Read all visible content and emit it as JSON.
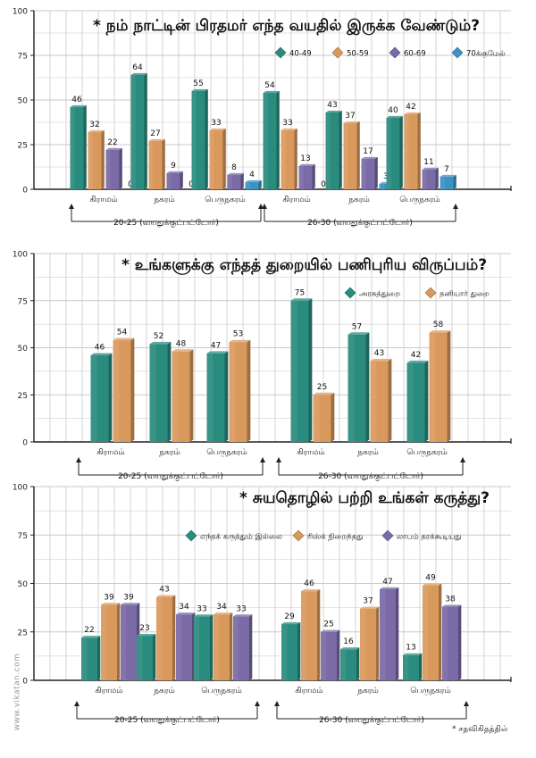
{
  "watermark": "www.vikatan.com",
  "footnote": "* சதவிகிதத்தில்",
  "colors": {
    "teal": "#2a8c7e",
    "orange": "#d9995c",
    "purple": "#7a6aa6",
    "blue": "#3d92c4",
    "grid": "#c9c9c9",
    "axis": "#222222"
  },
  "chart_data": [
    {
      "type": "bar",
      "title": "* நம் நாட்டின் பிரதமர் எந்த வயதில் இருக்க வேண்டும்?",
      "ylim": [
        0,
        100
      ],
      "yticks": [
        "0",
        "25",
        "50",
        "75",
        "100"
      ],
      "categories": [
        "கிராமம்",
        "நகரம்",
        "பெருநகரம்",
        "கிராமம்",
        "நகரம்",
        "பெருநகரம்"
      ],
      "groups": [
        {
          "label": "20-25  (வயதுக்குட்பட்டோர்)",
          "span": [
            0,
            2
          ]
        },
        {
          "label": "26-30  (வயதுக்குட்பட்டோர்)",
          "span": [
            3,
            5
          ]
        }
      ],
      "series": [
        {
          "name": "40-49",
          "color": "#2a8c7e",
          "values": [
            46,
            64,
            55,
            54,
            43,
            40
          ]
        },
        {
          "name": "50-59",
          "color": "#d9995c",
          "values": [
            32,
            27,
            33,
            33,
            37,
            42
          ]
        },
        {
          "name": "60-69",
          "color": "#7a6aa6",
          "values": [
            22,
            9,
            8,
            13,
            17,
            11
          ]
        },
        {
          "name": "70க்குமேல்",
          "color": "#3d92c4",
          "values": [
            0,
            0,
            4,
            0,
            3,
            7
          ]
        }
      ]
    },
    {
      "type": "bar",
      "title": "* உங்களுக்கு எந்தத் துறையில் பணிபுரிய விருப்பம்?",
      "ylim": [
        0,
        100
      ],
      "yticks": [
        "0",
        "25",
        "50",
        "75",
        "100"
      ],
      "categories": [
        "கிராமம்",
        "நகரம்",
        "பெருநகரம்",
        "கிராமம்",
        "நகரம்",
        "பெருநகரம்"
      ],
      "groups": [
        {
          "label": "20-25  (வயதுக்குட்பட்டோர்)",
          "span": [
            0,
            2
          ]
        },
        {
          "label": "26-30  (வயதுக்குட்பட்டோர்)",
          "span": [
            3,
            5
          ]
        }
      ],
      "series": [
        {
          "name": "அரசுத்துறை",
          "color": "#2a8c7e",
          "values": [
            46,
            52,
            47,
            75,
            57,
            42
          ]
        },
        {
          "name": "தனியார் துறை",
          "color": "#d9995c",
          "values": [
            54,
            48,
            53,
            25,
            43,
            58
          ]
        }
      ]
    },
    {
      "type": "bar",
      "title": "* சுயதொழில் பற்றி உங்கள் கருத்து?",
      "ylim": [
        0,
        100
      ],
      "yticks": [
        "0",
        "25",
        "50",
        "75",
        "100"
      ],
      "categories": [
        "கிராமம்",
        "நகரம்",
        "பெருநகரம்",
        "கிராமம்",
        "நகரம்",
        "பெருநகரம்"
      ],
      "groups": [
        {
          "label": "20-25  (வயதுக்குட்பட்டோர்)",
          "span": [
            0,
            2
          ]
        },
        {
          "label": "26-30  (வயதுக்குட்பட்டோர்)",
          "span": [
            3,
            5
          ]
        }
      ],
      "series": [
        {
          "name": "எந்தக் கருத்தும் இல்லை",
          "color": "#2a8c7e",
          "values": [
            22,
            23,
            33,
            29,
            16,
            13
          ]
        },
        {
          "name": "ரிஸ்க் நிறைந்தது",
          "color": "#d9995c",
          "values": [
            39,
            43,
            34,
            46,
            37,
            49
          ]
        },
        {
          "name": "லாபம் தரக்கூடியது",
          "color": "#7a6aa6",
          "values": [
            39,
            34,
            33,
            25,
            47,
            38
          ]
        }
      ]
    }
  ]
}
